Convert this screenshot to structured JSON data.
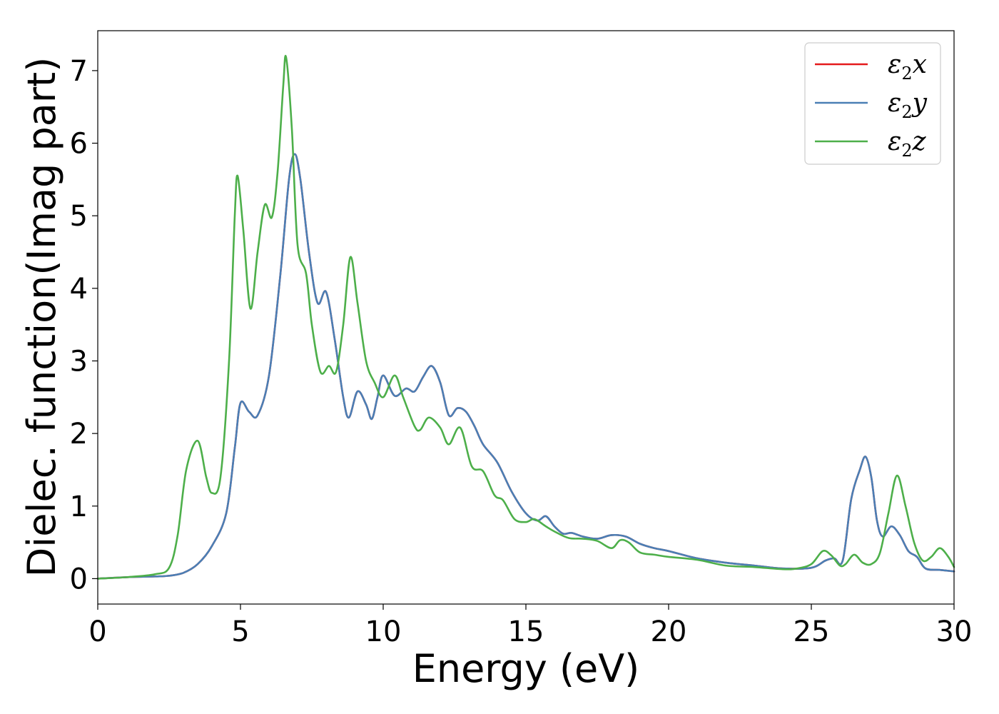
{
  "chart_data": {
    "type": "line",
    "title": "",
    "xlabel": "Energy (eV)",
    "ylabel": "Dielec. function(Imag part)",
    "xlim": [
      0,
      30
    ],
    "ylim": [
      -0.35,
      7.55
    ],
    "xticks": [
      0,
      5,
      10,
      15,
      20,
      25,
      30
    ],
    "yticks": [
      0,
      1,
      2,
      3,
      4,
      5,
      6,
      7
    ],
    "grid": false,
    "legend_position": "top-right",
    "series": [
      {
        "name": "ε₂x",
        "legend_base": "ε",
        "legend_sub": "2",
        "legend_suffix": "x",
        "color": "#e41a1c",
        "points": [
          [
            0,
            0
          ],
          [
            1,
            0.02
          ],
          [
            2,
            0.03
          ],
          [
            2.5,
            0.04
          ],
          [
            3,
            0.08
          ],
          [
            3.5,
            0.2
          ],
          [
            4,
            0.45
          ],
          [
            4.5,
            0.9
          ],
          [
            4.8,
            1.8
          ],
          [
            5,
            2.42
          ],
          [
            5.3,
            2.3
          ],
          [
            5.6,
            2.25
          ],
          [
            6,
            2.8
          ],
          [
            6.4,
            4.2
          ],
          [
            6.7,
            5.5
          ],
          [
            6.9,
            5.85
          ],
          [
            7.1,
            5.5
          ],
          [
            7.4,
            4.5
          ],
          [
            7.7,
            3.8
          ],
          [
            8,
            3.95
          ],
          [
            8.3,
            3.3
          ],
          [
            8.6,
            2.5
          ],
          [
            8.8,
            2.22
          ],
          [
            9.1,
            2.58
          ],
          [
            9.4,
            2.4
          ],
          [
            9.6,
            2.2
          ],
          [
            9.8,
            2.5
          ],
          [
            10,
            2.8
          ],
          [
            10.4,
            2.52
          ],
          [
            10.8,
            2.62
          ],
          [
            11.1,
            2.58
          ],
          [
            11.4,
            2.78
          ],
          [
            11.7,
            2.93
          ],
          [
            12,
            2.7
          ],
          [
            12.3,
            2.25
          ],
          [
            12.6,
            2.35
          ],
          [
            12.9,
            2.3
          ],
          [
            13.2,
            2.1
          ],
          [
            13.5,
            1.85
          ],
          [
            14,
            1.6
          ],
          [
            14.5,
            1.2
          ],
          [
            15,
            0.9
          ],
          [
            15.4,
            0.8
          ],
          [
            15.7,
            0.86
          ],
          [
            16,
            0.72
          ],
          [
            16.3,
            0.62
          ],
          [
            16.6,
            0.63
          ],
          [
            17,
            0.58
          ],
          [
            17.5,
            0.55
          ],
          [
            18,
            0.6
          ],
          [
            18.5,
            0.58
          ],
          [
            19,
            0.48
          ],
          [
            19.5,
            0.42
          ],
          [
            20,
            0.38
          ],
          [
            21,
            0.28
          ],
          [
            22,
            0.22
          ],
          [
            23,
            0.18
          ],
          [
            24,
            0.14
          ],
          [
            25,
            0.15
          ],
          [
            25.5,
            0.25
          ],
          [
            25.8,
            0.28
          ],
          [
            26.1,
            0.25
          ],
          [
            26.4,
            1.1
          ],
          [
            26.7,
            1.5
          ],
          [
            26.9,
            1.68
          ],
          [
            27.1,
            1.4
          ],
          [
            27.3,
            0.8
          ],
          [
            27.5,
            0.58
          ],
          [
            27.8,
            0.72
          ],
          [
            28.1,
            0.6
          ],
          [
            28.4,
            0.38
          ],
          [
            28.7,
            0.3
          ],
          [
            29,
            0.14
          ],
          [
            29.5,
            0.12
          ],
          [
            30,
            0.1
          ]
        ]
      },
      {
        "name": "ε₂y",
        "legend_base": "ε",
        "legend_sub": "2",
        "legend_suffix": "y",
        "color": "#4a7fb5",
        "points": [
          [
            0,
            0
          ],
          [
            1,
            0.02
          ],
          [
            2,
            0.03
          ],
          [
            2.5,
            0.04
          ],
          [
            3,
            0.08
          ],
          [
            3.5,
            0.2
          ],
          [
            4,
            0.45
          ],
          [
            4.5,
            0.9
          ],
          [
            4.8,
            1.8
          ],
          [
            5,
            2.42
          ],
          [
            5.3,
            2.3
          ],
          [
            5.6,
            2.25
          ],
          [
            6,
            2.8
          ],
          [
            6.4,
            4.2
          ],
          [
            6.7,
            5.5
          ],
          [
            6.9,
            5.85
          ],
          [
            7.1,
            5.5
          ],
          [
            7.4,
            4.5
          ],
          [
            7.7,
            3.8
          ],
          [
            8,
            3.95
          ],
          [
            8.3,
            3.3
          ],
          [
            8.6,
            2.5
          ],
          [
            8.8,
            2.22
          ],
          [
            9.1,
            2.58
          ],
          [
            9.4,
            2.4
          ],
          [
            9.6,
            2.2
          ],
          [
            9.8,
            2.5
          ],
          [
            10,
            2.8
          ],
          [
            10.4,
            2.52
          ],
          [
            10.8,
            2.62
          ],
          [
            11.1,
            2.58
          ],
          [
            11.4,
            2.78
          ],
          [
            11.7,
            2.93
          ],
          [
            12,
            2.7
          ],
          [
            12.3,
            2.25
          ],
          [
            12.6,
            2.35
          ],
          [
            12.9,
            2.3
          ],
          [
            13.2,
            2.1
          ],
          [
            13.5,
            1.85
          ],
          [
            14,
            1.6
          ],
          [
            14.5,
            1.2
          ],
          [
            15,
            0.9
          ],
          [
            15.4,
            0.8
          ],
          [
            15.7,
            0.86
          ],
          [
            16,
            0.72
          ],
          [
            16.3,
            0.62
          ],
          [
            16.6,
            0.63
          ],
          [
            17,
            0.58
          ],
          [
            17.5,
            0.55
          ],
          [
            18,
            0.6
          ],
          [
            18.5,
            0.58
          ],
          [
            19,
            0.48
          ],
          [
            19.5,
            0.42
          ],
          [
            20,
            0.38
          ],
          [
            21,
            0.28
          ],
          [
            22,
            0.22
          ],
          [
            23,
            0.18
          ],
          [
            24,
            0.14
          ],
          [
            25,
            0.15
          ],
          [
            25.5,
            0.25
          ],
          [
            25.8,
            0.28
          ],
          [
            26.1,
            0.25
          ],
          [
            26.4,
            1.1
          ],
          [
            26.7,
            1.5
          ],
          [
            26.9,
            1.68
          ],
          [
            27.1,
            1.4
          ],
          [
            27.3,
            0.8
          ],
          [
            27.5,
            0.58
          ],
          [
            27.8,
            0.72
          ],
          [
            28.1,
            0.6
          ],
          [
            28.4,
            0.38
          ],
          [
            28.7,
            0.3
          ],
          [
            29,
            0.14
          ],
          [
            29.5,
            0.12
          ],
          [
            30,
            0.1
          ]
        ]
      },
      {
        "name": "ε₂z",
        "legend_base": "ε",
        "legend_sub": "2",
        "legend_suffix": "z",
        "color": "#4daf4a",
        "points": [
          [
            0,
            0
          ],
          [
            1,
            0.02
          ],
          [
            2,
            0.06
          ],
          [
            2.5,
            0.15
          ],
          [
            2.8,
            0.6
          ],
          [
            3.1,
            1.5
          ],
          [
            3.5,
            1.9
          ],
          [
            3.8,
            1.4
          ],
          [
            4,
            1.18
          ],
          [
            4.3,
            1.4
          ],
          [
            4.6,
            3.0
          ],
          [
            4.8,
            5.0
          ],
          [
            4.9,
            5.55
          ],
          [
            5.1,
            4.8
          ],
          [
            5.35,
            3.72
          ],
          [
            5.6,
            4.5
          ],
          [
            5.85,
            5.15
          ],
          [
            6.1,
            4.98
          ],
          [
            6.3,
            5.6
          ],
          [
            6.5,
            6.8
          ],
          [
            6.6,
            7.18
          ],
          [
            6.8,
            6.2
          ],
          [
            7.0,
            4.6
          ],
          [
            7.3,
            4.2
          ],
          [
            7.5,
            3.5
          ],
          [
            7.8,
            2.85
          ],
          [
            8.1,
            2.93
          ],
          [
            8.35,
            2.85
          ],
          [
            8.6,
            3.5
          ],
          [
            8.85,
            4.43
          ],
          [
            9.1,
            3.8
          ],
          [
            9.4,
            3.0
          ],
          [
            9.7,
            2.7
          ],
          [
            10,
            2.5
          ],
          [
            10.4,
            2.8
          ],
          [
            10.7,
            2.5
          ],
          [
            11.1,
            2.1
          ],
          [
            11.3,
            2.05
          ],
          [
            11.6,
            2.22
          ],
          [
            12,
            2.08
          ],
          [
            12.3,
            1.85
          ],
          [
            12.7,
            2.08
          ],
          [
            13.1,
            1.55
          ],
          [
            13.5,
            1.48
          ],
          [
            13.9,
            1.15
          ],
          [
            14.2,
            1.08
          ],
          [
            14.6,
            0.82
          ],
          [
            15,
            0.78
          ],
          [
            15.3,
            0.82
          ],
          [
            15.7,
            0.72
          ],
          [
            16,
            0.65
          ],
          [
            16.5,
            0.56
          ],
          [
            17,
            0.55
          ],
          [
            17.5,
            0.52
          ],
          [
            18,
            0.42
          ],
          [
            18.3,
            0.53
          ],
          [
            18.6,
            0.5
          ],
          [
            19,
            0.36
          ],
          [
            19.5,
            0.33
          ],
          [
            20,
            0.3
          ],
          [
            21,
            0.26
          ],
          [
            22,
            0.18
          ],
          [
            23,
            0.16
          ],
          [
            24,
            0.13
          ],
          [
            24.5,
            0.14
          ],
          [
            25,
            0.2
          ],
          [
            25.4,
            0.38
          ],
          [
            25.7,
            0.32
          ],
          [
            26,
            0.18
          ],
          [
            26.2,
            0.2
          ],
          [
            26.5,
            0.33
          ],
          [
            26.8,
            0.22
          ],
          [
            27.1,
            0.2
          ],
          [
            27.4,
            0.35
          ],
          [
            27.7,
            0.9
          ],
          [
            28,
            1.42
          ],
          [
            28.3,
            1.0
          ],
          [
            28.6,
            0.5
          ],
          [
            28.9,
            0.25
          ],
          [
            29.2,
            0.3
          ],
          [
            29.5,
            0.42
          ],
          [
            29.8,
            0.3
          ],
          [
            30,
            0.16
          ]
        ]
      }
    ]
  }
}
